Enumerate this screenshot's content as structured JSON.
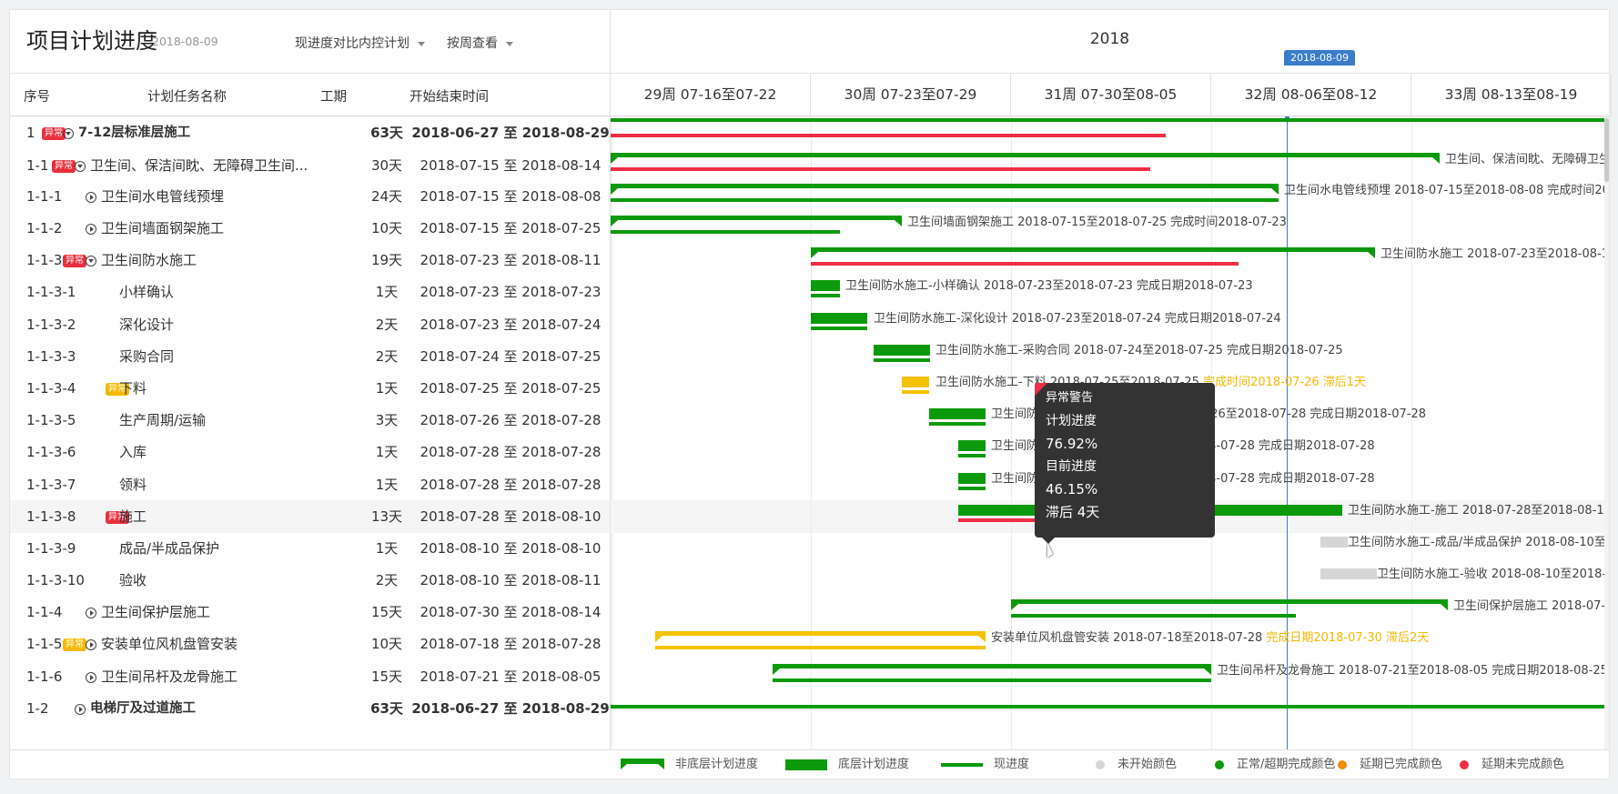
{
  "header": {
    "title": "项目计划进度",
    "date": "2018-08-09",
    "compare_select": "现进度对比内控计划",
    "view_select": "按周查看"
  },
  "columns": {
    "no": "序号",
    "name": "计划任务名称",
    "duration": "工期",
    "dates": "开始结束时间"
  },
  "timeline": {
    "year": "2018",
    "today_marker": "2018-08-09",
    "weeks": [
      "29周  07-16至07-22",
      "30周  07-23至07-29",
      "31周  07-30至08-05",
      "32周  08-06至08-12",
      "33周  08-13至08-19"
    ]
  },
  "badges": {
    "red": "异常",
    "yellow": "异常"
  },
  "rows": [
    {
      "no": "1",
      "name": "7-12层标准层施工",
      "dur": "63天",
      "dates": "2018-06-27 至 2018-08-29",
      "badge": "red",
      "toggle": "down",
      "bold": true,
      "indent": 0
    },
    {
      "no": "1-1",
      "name": "卫生间、保洁间眈、无障碍卫生间...",
      "dur": "30天",
      "dates": "2018-07-15 至 2018-08-14",
      "badge": "red",
      "toggle": "down",
      "bold": false,
      "indent": 1
    },
    {
      "no": "1-1-1",
      "name": "卫生间水电管线预埋",
      "dur": "24天",
      "dates": "2018-07-15 至 2018-08-08",
      "badge": "",
      "toggle": "right",
      "bold": false,
      "indent": 2
    },
    {
      "no": "1-1-2",
      "name": "卫生间墙面钢架施工",
      "dur": "10天",
      "dates": "2018-07-15 至 2018-07-25",
      "badge": "",
      "toggle": "right",
      "bold": false,
      "indent": 2
    },
    {
      "no": "1-1-3",
      "name": "卫生间防水施工",
      "dur": "19天",
      "dates": "2018-07-23 至 2018-08-11",
      "badge": "red",
      "toggle": "down",
      "bold": false,
      "indent": 2
    },
    {
      "no": "1-1-3-1",
      "name": "小样确认",
      "dur": "1天",
      "dates": "2018-07-23 至 2018-07-23",
      "badge": "",
      "toggle": "",
      "bold": false,
      "indent": 3
    },
    {
      "no": "1-1-3-2",
      "name": "深化设计",
      "dur": "2天",
      "dates": "2018-07-23 至 2018-07-24",
      "badge": "",
      "toggle": "",
      "bold": false,
      "indent": 3
    },
    {
      "no": "1-1-3-3",
      "name": "采购合同",
      "dur": "2天",
      "dates": "2018-07-24 至 2018-07-25",
      "badge": "",
      "toggle": "",
      "bold": false,
      "indent": 3
    },
    {
      "no": "1-1-3-4",
      "name": "下料",
      "dur": "1天",
      "dates": "2018-07-25 至 2018-07-25",
      "badge": "yellow",
      "toggle": "",
      "bold": false,
      "indent": 3
    },
    {
      "no": "1-1-3-5",
      "name": "生产周期/运输",
      "dur": "3天",
      "dates": "2018-07-26 至 2018-07-28",
      "badge": "",
      "toggle": "",
      "bold": false,
      "indent": 3
    },
    {
      "no": "1-1-3-6",
      "name": "入库",
      "dur": "1天",
      "dates": "2018-07-28 至 2018-07-28",
      "badge": "",
      "toggle": "",
      "bold": false,
      "indent": 3
    },
    {
      "no": "1-1-3-7",
      "name": "领料",
      "dur": "1天",
      "dates": "2018-07-28 至 2018-07-28",
      "badge": "",
      "toggle": "",
      "bold": false,
      "indent": 3
    },
    {
      "no": "1-1-3-8",
      "name": "施工",
      "dur": "13天",
      "dates": "2018-07-28 至 2018-08-10",
      "badge": "red",
      "toggle": "",
      "bold": false,
      "indent": 3
    },
    {
      "no": "1-1-3-9",
      "name": "成品/半成品保护",
      "dur": "1天",
      "dates": "2018-08-10 至 2018-08-10",
      "badge": "",
      "toggle": "",
      "bold": false,
      "indent": 3
    },
    {
      "no": "1-1-3-10",
      "name": "验收",
      "dur": "2天",
      "dates": "2018-08-10 至 2018-08-11",
      "badge": "",
      "toggle": "",
      "bold": false,
      "indent": 3
    },
    {
      "no": "1-1-4",
      "name": "卫生间保护层施工",
      "dur": "15天",
      "dates": "2018-07-30 至 2018-08-14",
      "badge": "",
      "toggle": "right",
      "bold": false,
      "indent": 2
    },
    {
      "no": "1-1-5",
      "name": "安装单位风机盘管安装",
      "dur": "10天",
      "dates": "2018-07-18 至 2018-07-28",
      "badge": "yellow",
      "toggle": "right",
      "bold": false,
      "indent": 2
    },
    {
      "no": "1-1-6",
      "name": "卫生间吊杆及龙骨施工",
      "dur": "15天",
      "dates": "2018-07-21 至 2018-08-05",
      "badge": "",
      "toggle": "right",
      "bold": false,
      "indent": 2
    },
    {
      "no": "1-2",
      "name": "电梯厅及过道施工",
      "dur": "63天",
      "dates": "2018-06-27 至 2018-08-29",
      "badge": "",
      "toggle": "right",
      "bold": true,
      "indent": 1
    }
  ],
  "bar_labels": [
    {
      "row": 1,
      "text": "卫生间、保洁间眈、无障碍卫生间",
      "warn": ""
    },
    {
      "row": 2,
      "text": "卫生间水电管线预埋 2018-07-15至2018-08-08  完成时间20",
      "warn": ""
    },
    {
      "row": 3,
      "text": "卫生间墙面钢架施工 2018-07-15至2018-07-25 完成时间2018-07-23",
      "warn": ""
    },
    {
      "row": 4,
      "text": "卫生间防水施工 2018-07-23至2018-08-1",
      "warn": ""
    },
    {
      "row": 5,
      "text": "卫生间防水施工-小样确认 2018-07-23至2018-07-23 完成日期2018-07-23",
      "warn": ""
    },
    {
      "row": 6,
      "text": "卫生间防水施工-深化设计 2018-07-23至2018-07-24 完成日期2018-07-24",
      "warn": ""
    },
    {
      "row": 7,
      "text": "卫生间防水施工-采购合同 2018-07-24至2018-07-25 完成日期2018-07-25",
      "warn": ""
    },
    {
      "row": 8,
      "text": "卫生间防水施工-下料 2018-07-25至2018-07-25 ",
      "warn": "完成时间2018-07-26 滞后1天"
    },
    {
      "row": 9,
      "text": "卫生间防水施工-生产周期/运输 2018-07-26至2018-07-28 完成日期2018-07-28",
      "warn": ""
    },
    {
      "row": 10,
      "text": "卫生间防水施工-入库 2018-07-28至2018-07-28 完成日期2018-07-28",
      "warn": ""
    },
    {
      "row": 11,
      "text": "卫生间防水施工-领料 2018-07-28至2018-07-28 完成日期2018-07-28",
      "warn": ""
    },
    {
      "row": 12,
      "text": "卫生间防水施工-施工 2018-07-28至2018-08-1",
      "warn": ""
    },
    {
      "row": 13,
      "text": "卫生间防水施工-成品/半成品保护 2018-08-10至",
      "warn": ""
    },
    {
      "row": 14,
      "text": "卫生间防水施工-验收 2018-08-10至2018-",
      "warn": ""
    },
    {
      "row": 15,
      "text": "卫生间保护层施工 2018-07-",
      "warn": ""
    },
    {
      "row": 16,
      "text": "安装单位风机盘管安装 2018-07-18至2018-07-28 ",
      "warn": "完成日期2018-07-30 滞后2天"
    },
    {
      "row": 17,
      "text": "卫生间吊杆及龙骨施工 2018-07-21至2018-08-05 完成日期2018-08-25",
      "warn": ""
    }
  ],
  "tooltip": {
    "title": "异常警告",
    "plan_label": "计划进度",
    "plan_value": "76.92%",
    "current_label": "目前进度",
    "current_value": "46.15%",
    "delay": "滞后 4天"
  },
  "legend": {
    "non_bottom_plan": "非底层计划进度",
    "bottom_plan": "底层计划进度",
    "current": "现进度",
    "not_started": "未开始颜色",
    "on_time": "正常/超期完成颜色",
    "delayed_done": "延期已完成颜色",
    "delayed_undone": "延期未完成颜色"
  },
  "colors": {
    "green": "#0c9a0c",
    "red": "#ef2d44",
    "yellow": "#f5c200",
    "gray": "#d6d6d6",
    "orange": "#f08c00",
    "today": "#3a7dc9"
  }
}
